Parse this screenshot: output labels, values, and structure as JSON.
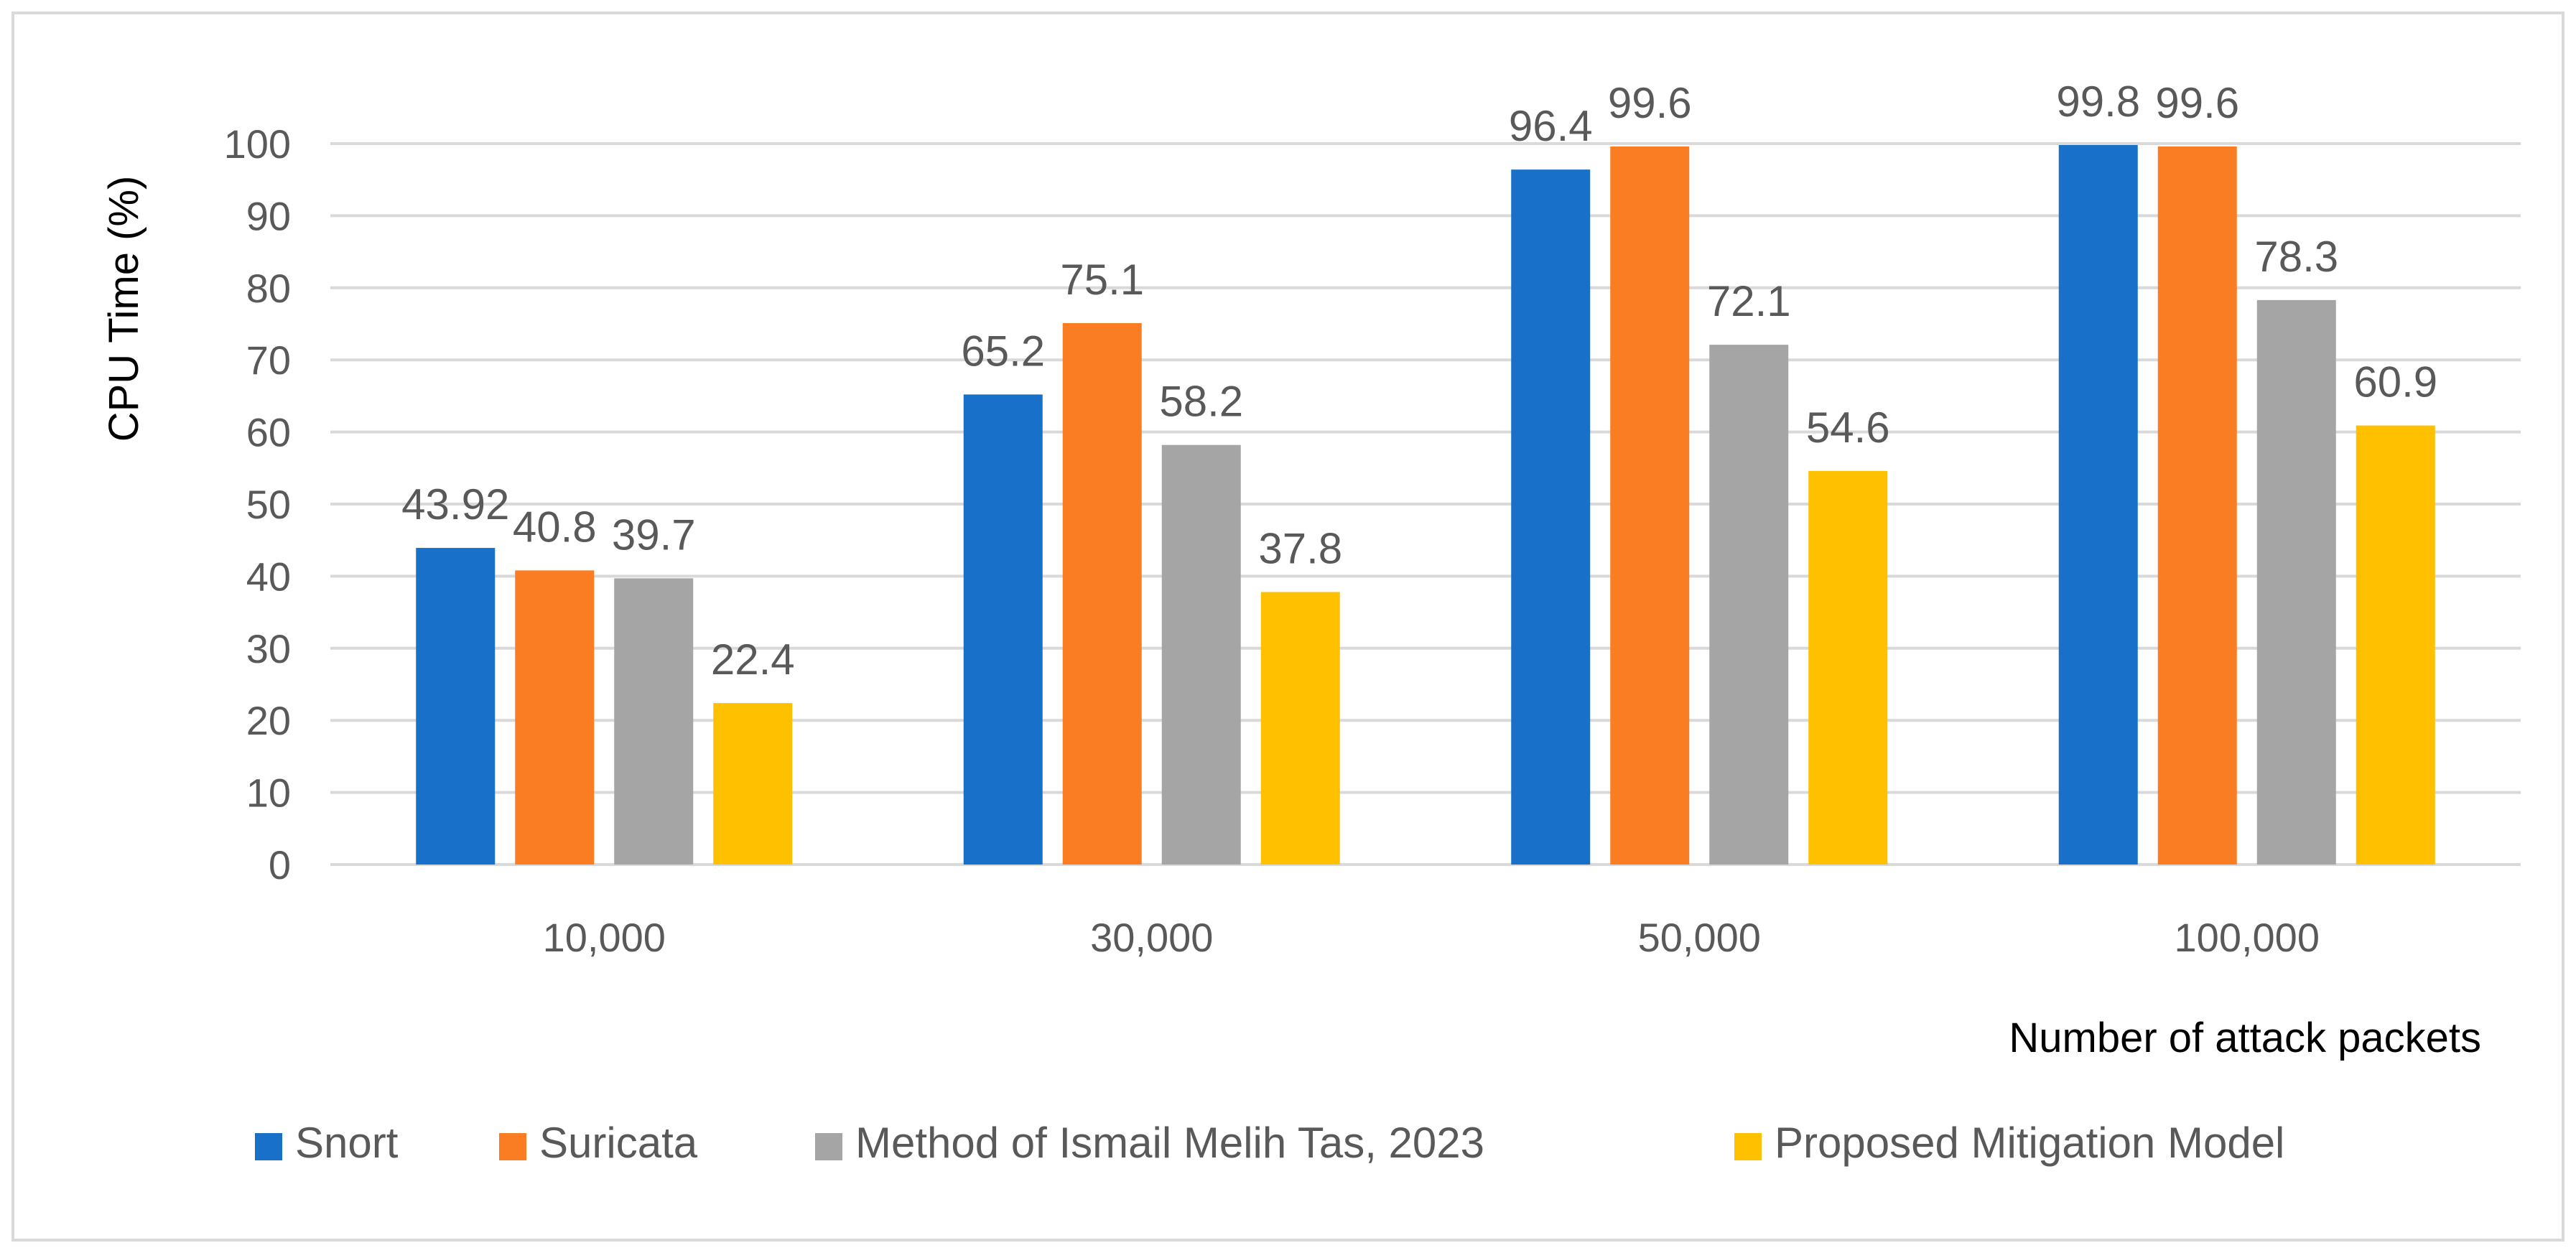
{
  "chart_data": {
    "type": "bar",
    "title": "",
    "xlabel": "Number of attack packets",
    "ylabel": "CPU Time (%)",
    "ylim": [
      0,
      100
    ],
    "yticks": [
      0,
      10,
      20,
      30,
      40,
      50,
      60,
      70,
      80,
      90,
      100
    ],
    "grid": true,
    "legend_position": "bottom",
    "categories": [
      "10,000",
      "30,000",
      "50,000",
      "100,000"
    ],
    "series": [
      {
        "name": "Snort",
        "color": "#1870C9",
        "values": [
          43.92,
          65.2,
          96.4,
          99.8
        ],
        "labels": [
          "43.92",
          "65.2",
          "96.4",
          "99.8"
        ]
      },
      {
        "name": "Suricata",
        "color": "#FB7D23",
        "values": [
          40.8,
          75.1,
          99.6,
          99.6
        ],
        "labels": [
          "40.8",
          "75.1",
          "99.6",
          "99.6"
        ]
      },
      {
        "name": "Method of Ismail Melih Tas, 2023",
        "color": "#A5A5A5",
        "values": [
          39.7,
          58.2,
          72.1,
          78.3
        ],
        "labels": [
          "39.7",
          "58.2",
          "72.1",
          "78.3"
        ]
      },
      {
        "name": "Proposed Mitigation Model",
        "color": "#FFC000",
        "values": [
          22.4,
          37.8,
          54.6,
          60.9
        ],
        "labels": [
          "22.4",
          "37.8",
          "54.6",
          "60.9"
        ]
      }
    ]
  }
}
